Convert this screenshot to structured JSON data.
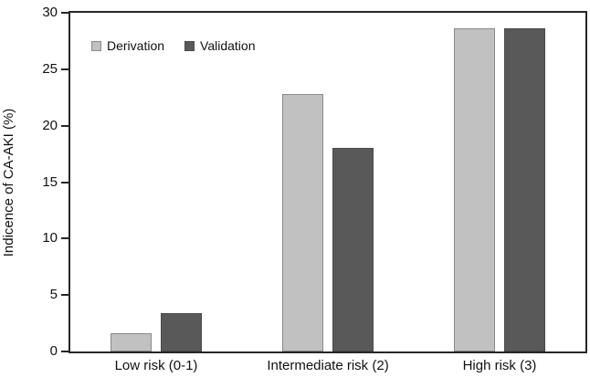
{
  "chart_data": {
    "type": "bar",
    "title": "",
    "categories": [
      "Low risk (0-1)",
      "Intermediate risk (2)",
      "High risk (3)"
    ],
    "series": [
      {
        "name": "Derivation",
        "values": [
          1.6,
          22.8,
          28.6
        ],
        "fill": "#c1c1c1",
        "border": "#8a8a8a"
      },
      {
        "name": "Validation",
        "values": [
          3.4,
          18.0,
          28.6
        ],
        "fill": "#595959",
        "border": "#4a4a4a"
      }
    ],
    "xlabel": "",
    "ylabel": "Indicence of CA-AKI (%)",
    "ylim": [
      0,
      30
    ],
    "yticks": [
      0,
      5,
      10,
      15,
      20,
      25,
      30
    ],
    "grid": false,
    "legend_position": "top-left-inside"
  },
  "colors": {
    "axis": "#262626",
    "text": "#111111",
    "background": "#ffffff"
  }
}
